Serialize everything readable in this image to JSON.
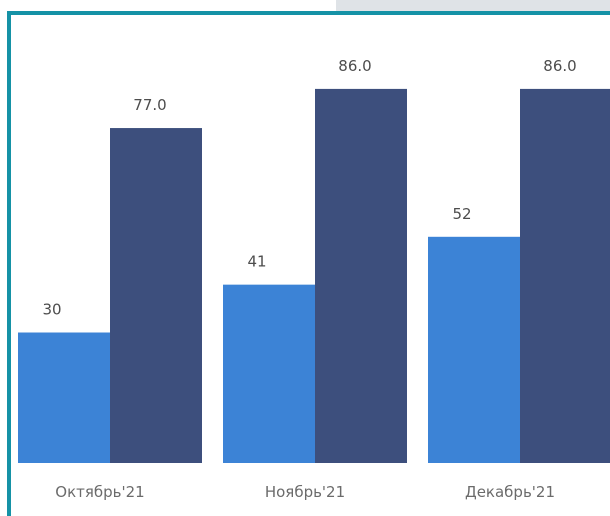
{
  "colors": {
    "frame_border": "#1592a6",
    "series_light": "#3c83d6",
    "series_dark": "#3d4f7d",
    "background": "#ffffff"
  },
  "chart_data": {
    "type": "bar",
    "categories": [
      "Октябрь'21",
      "Ноябрь'21",
      "Декабрь'21"
    ],
    "series": [
      {
        "values": [
          30,
          41,
          52
        ],
        "labels": [
          "30",
          "41",
          "52"
        ],
        "color": "#3c83d6"
      },
      {
        "values": [
          77.0,
          86.0,
          86.0
        ],
        "labels": [
          "77.0",
          "86.0",
          "86.0"
        ],
        "color": "#3d4f7d"
      }
    ],
    "ylim": [
      0,
      100
    ],
    "grid": false,
    "legend": "none"
  }
}
